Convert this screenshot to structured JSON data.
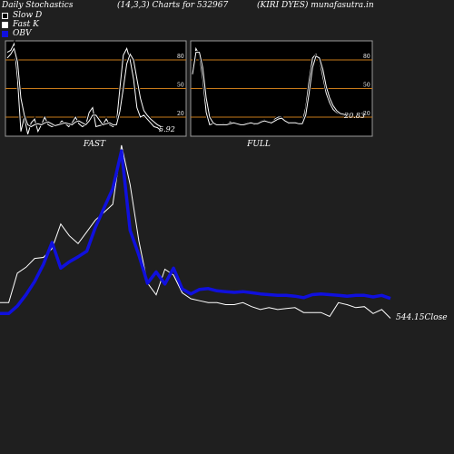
{
  "header": {
    "title": "Daily Stochastics",
    "params": "(14,3,3) Charts for 532967",
    "company": "(KIRI DYES) munafasutra.in"
  },
  "legend": [
    {
      "label": "Slow  D",
      "color": "#000000"
    },
    {
      "label": "Fast K",
      "color": "#ffffff"
    },
    {
      "label": "OBV",
      "color": "#1010dd"
    }
  ],
  "chart_data": [
    {
      "type": "line",
      "title": "FAST",
      "ylim": [
        0,
        100
      ],
      "yticks": [
        "80",
        "50",
        "20"
      ],
      "last_value": "5.92",
      "series": [
        {
          "name": "Fast K",
          "values": [
            88,
            90,
            97,
            60,
            5,
            20,
            2,
            14,
            18,
            5,
            12,
            20,
            12,
            10,
            11,
            12,
            16,
            13,
            10,
            14,
            20,
            13,
            10,
            12,
            25,
            30,
            10,
            11,
            12,
            18,
            12,
            10,
            14,
            50,
            85,
            92,
            80,
            60,
            30,
            20,
            22,
            18,
            14,
            10,
            9,
            6
          ]
        },
        {
          "name": "Slow  D",
          "values": [
            82,
            86,
            92,
            78,
            40,
            22,
            12,
            10,
            12,
            13,
            12,
            14,
            15,
            13,
            11,
            12,
            13,
            14,
            13,
            12,
            15,
            16,
            14,
            12,
            16,
            22,
            22,
            17,
            12,
            13,
            14,
            12,
            12,
            26,
            50,
            76,
            86,
            80,
            60,
            40,
            27,
            22,
            18,
            15,
            12,
            10
          ]
        }
      ]
    },
    {
      "type": "line",
      "title": "FULL",
      "ylim": [
        0,
        100
      ],
      "yticks": [
        "80",
        "50",
        "20"
      ],
      "last_value": "20.83",
      "series": [
        {
          "name": "Fast K",
          "values": [
            70,
            92,
            85,
            60,
            25,
            12,
            13,
            12,
            12,
            13,
            12,
            15,
            14,
            13,
            12,
            13,
            14,
            14,
            12,
            14,
            16,
            17,
            15,
            13,
            18,
            20,
            20,
            15,
            13,
            14,
            14,
            13,
            14,
            30,
            58,
            82,
            86,
            80,
            62,
            45,
            35,
            28,
            25,
            23,
            22,
            21
          ]
        },
        {
          "name": "Slow  D",
          "values": [
            65,
            88,
            88,
            72,
            40,
            20,
            14,
            12,
            12,
            12,
            12,
            13,
            14,
            13,
            12,
            12,
            13,
            14,
            13,
            13,
            15,
            16,
            15,
            14,
            16,
            18,
            19,
            16,
            14,
            14,
            14,
            13,
            13,
            22,
            45,
            72,
            84,
            82,
            70,
            52,
            40,
            32,
            27,
            24,
            23,
            22
          ]
        }
      ]
    },
    {
      "type": "line",
      "title": "",
      "last_value": "544.15",
      "last_label": "Close",
      "series": [
        {
          "name": "Close",
          "values": [
            560,
            560,
            590,
            596,
            605,
            606,
            615,
            640,
            628,
            620,
            632,
            644,
            652,
            660,
            720,
            680,
            623,
            580,
            568,
            594,
            588,
            570,
            564,
            562,
            560,
            560,
            558,
            558,
            560,
            556,
            553,
            555,
            553,
            554,
            555,
            550,
            550,
            550,
            546,
            560,
            558,
            555,
            556,
            549,
            553,
            544.15
          ]
        },
        {
          "name": "OBV",
          "values": [
            40,
            40,
            60,
            90,
            125,
            170,
            228,
            160,
            177,
            190,
            205,
            268,
            320,
            370,
            470,
            260,
            195,
            120,
            150,
            118,
            160,
            105,
            92,
            104,
            106,
            100,
            98,
            96,
            98,
            95,
            92,
            90,
            88,
            88,
            86,
            82,
            90,
            92,
            90,
            88,
            86,
            88,
            88,
            84,
            88,
            80
          ]
        }
      ]
    }
  ]
}
